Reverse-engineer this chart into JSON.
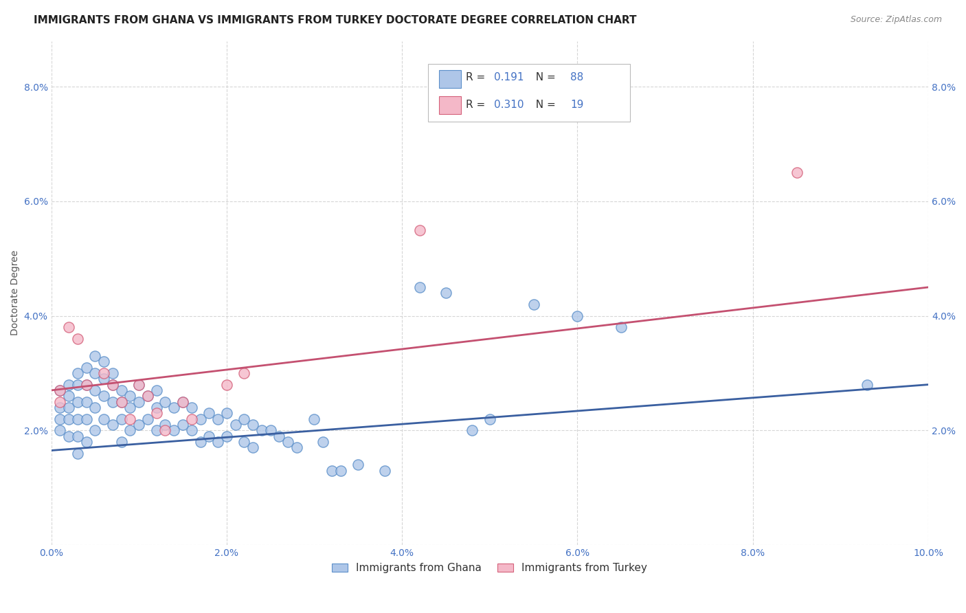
{
  "title": "IMMIGRANTS FROM GHANA VS IMMIGRANTS FROM TURKEY DOCTORATE DEGREE CORRELATION CHART",
  "source": "Source: ZipAtlas.com",
  "ylabel": "Doctorate Degree",
  "xlim": [
    0.0,
    0.1
  ],
  "ylim": [
    0.0,
    0.088
  ],
  "xticks": [
    0.0,
    0.02,
    0.04,
    0.06,
    0.08,
    0.1
  ],
  "yticks": [
    0.0,
    0.02,
    0.04,
    0.06,
    0.08
  ],
  "xticklabels": [
    "0.0%",
    "2.0%",
    "4.0%",
    "6.0%",
    "8.0%",
    "10.0%"
  ],
  "yticklabels_left": [
    "",
    "2.0%",
    "4.0%",
    "6.0%",
    "8.0%"
  ],
  "yticklabels_right": [
    "",
    "2.0%",
    "4.0%",
    "6.0%",
    "8.0%"
  ],
  "ghana_color": "#aec6e8",
  "ghana_edge_color": "#5b8fc9",
  "turkey_color": "#f4b8c8",
  "turkey_edge_color": "#d4607a",
  "ghana_line_color": "#3a5fa0",
  "turkey_line_color": "#c45070",
  "R_ghana": "0.191",
  "N_ghana": "88",
  "R_turkey": "0.310",
  "N_turkey": "19",
  "ghana_x": [
    0.001,
    0.001,
    0.001,
    0.001,
    0.002,
    0.002,
    0.002,
    0.002,
    0.002,
    0.003,
    0.003,
    0.003,
    0.003,
    0.003,
    0.003,
    0.004,
    0.004,
    0.004,
    0.004,
    0.004,
    0.005,
    0.005,
    0.005,
    0.005,
    0.005,
    0.006,
    0.006,
    0.006,
    0.006,
    0.007,
    0.007,
    0.007,
    0.007,
    0.008,
    0.008,
    0.008,
    0.008,
    0.009,
    0.009,
    0.009,
    0.01,
    0.01,
    0.01,
    0.011,
    0.011,
    0.012,
    0.012,
    0.012,
    0.013,
    0.013,
    0.014,
    0.014,
    0.015,
    0.015,
    0.016,
    0.016,
    0.017,
    0.017,
    0.018,
    0.018,
    0.019,
    0.019,
    0.02,
    0.02,
    0.021,
    0.022,
    0.022,
    0.023,
    0.023,
    0.024,
    0.025,
    0.026,
    0.027,
    0.028,
    0.03,
    0.031,
    0.032,
    0.033,
    0.035,
    0.038,
    0.042,
    0.045,
    0.048,
    0.05,
    0.055,
    0.06,
    0.065,
    0.093
  ],
  "ghana_y": [
    0.027,
    0.024,
    0.022,
    0.02,
    0.028,
    0.026,
    0.024,
    0.022,
    0.019,
    0.03,
    0.028,
    0.025,
    0.022,
    0.019,
    0.016,
    0.031,
    0.028,
    0.025,
    0.022,
    0.018,
    0.033,
    0.03,
    0.027,
    0.024,
    0.02,
    0.032,
    0.029,
    0.026,
    0.022,
    0.03,
    0.028,
    0.025,
    0.021,
    0.027,
    0.025,
    0.022,
    0.018,
    0.026,
    0.024,
    0.02,
    0.028,
    0.025,
    0.021,
    0.026,
    0.022,
    0.027,
    0.024,
    0.02,
    0.025,
    0.021,
    0.024,
    0.02,
    0.025,
    0.021,
    0.024,
    0.02,
    0.022,
    0.018,
    0.023,
    0.019,
    0.022,
    0.018,
    0.023,
    0.019,
    0.021,
    0.022,
    0.018,
    0.021,
    0.017,
    0.02,
    0.02,
    0.019,
    0.018,
    0.017,
    0.022,
    0.018,
    0.013,
    0.013,
    0.014,
    0.013,
    0.045,
    0.044,
    0.02,
    0.022,
    0.042,
    0.04,
    0.038,
    0.028
  ],
  "turkey_x": [
    0.001,
    0.001,
    0.002,
    0.003,
    0.004,
    0.006,
    0.007,
    0.008,
    0.009,
    0.01,
    0.011,
    0.012,
    0.013,
    0.015,
    0.016,
    0.02,
    0.022,
    0.042,
    0.085
  ],
  "turkey_y": [
    0.027,
    0.025,
    0.038,
    0.036,
    0.028,
    0.03,
    0.028,
    0.025,
    0.022,
    0.028,
    0.026,
    0.023,
    0.02,
    0.025,
    0.022,
    0.028,
    0.03,
    0.055,
    0.065
  ],
  "ghana_trend_x": [
    0.0,
    0.1
  ],
  "ghana_trend_y": [
    0.0165,
    0.028
  ],
  "turkey_trend_x": [
    0.0,
    0.1
  ],
  "turkey_trend_y": [
    0.027,
    0.045
  ],
  "bg_color": "#ffffff",
  "grid_color": "#cccccc",
  "tick_color": "#4472c4",
  "title_color": "#222222",
  "source_color": "#888888",
  "ylabel_color": "#555555",
  "legend_text_color": "#333333",
  "title_fontsize": 11,
  "tick_fontsize": 10,
  "legend_fontsize": 11,
  "source_fontsize": 9,
  "ylabel_fontsize": 10,
  "scatter_size": 120,
  "scatter_lw": 1.0
}
